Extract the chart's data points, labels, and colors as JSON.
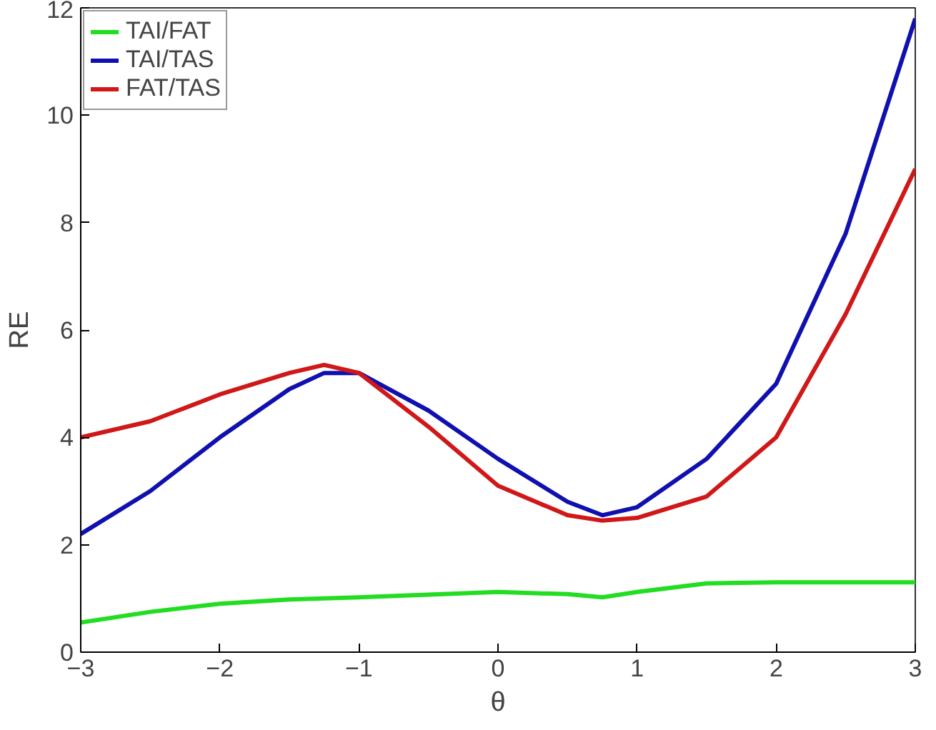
{
  "chart_data": {
    "type": "line",
    "xlabel": "θ",
    "ylabel": "RE",
    "xlim": [
      -3,
      3
    ],
    "ylim": [
      0,
      12
    ],
    "xticks": [
      -3,
      -2,
      -1,
      0,
      1,
      2,
      3
    ],
    "yticks": [
      0,
      2,
      4,
      6,
      8,
      10,
      12
    ],
    "grid": false,
    "legend": "top left",
    "line_style": "solid",
    "marker": "none",
    "x": [
      -3,
      -2.5,
      -2,
      -1.5,
      -1.25,
      -1,
      -0.5,
      0,
      0.5,
      0.75,
      1,
      1.5,
      2,
      2.5,
      3
    ],
    "series": [
      {
        "name": "TAI/FAT",
        "color": "#22dd22",
        "values": [
          0.55,
          0.75,
          0.9,
          0.98,
          1.0,
          1.02,
          1.07,
          1.12,
          1.08,
          1.02,
          1.12,
          1.28,
          1.3,
          1.3,
          1.3
        ]
      },
      {
        "name": "TAI/TAS",
        "color": "#1010b0",
        "values": [
          2.2,
          3.0,
          4.0,
          4.9,
          5.2,
          5.2,
          4.5,
          3.6,
          2.8,
          2.55,
          2.7,
          3.6,
          5.0,
          7.8,
          11.8
        ]
      },
      {
        "name": "FAT/TAS",
        "color": "#d01818",
        "values": [
          4.0,
          4.3,
          4.8,
          5.2,
          5.35,
          5.2,
          4.2,
          3.1,
          2.55,
          2.45,
          2.5,
          2.9,
          4.0,
          6.3,
          9.0
        ]
      }
    ]
  }
}
